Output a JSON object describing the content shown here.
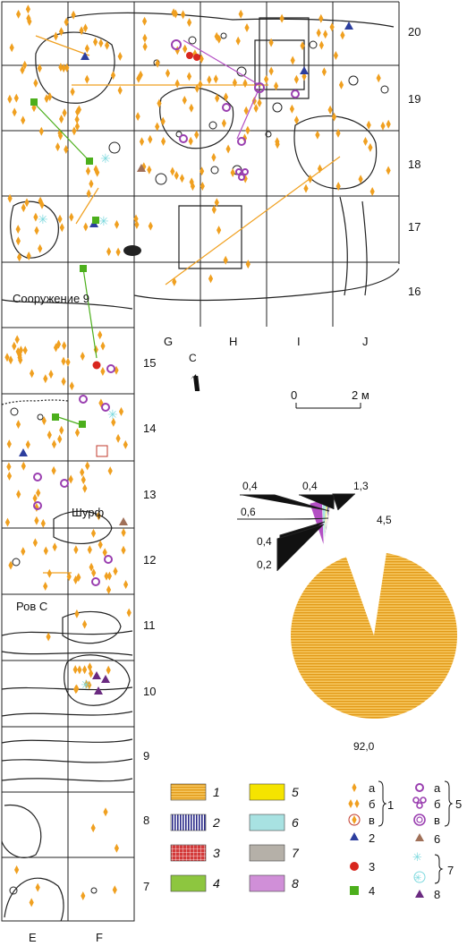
{
  "plan": {
    "row_numbers": [
      "20",
      "19",
      "18",
      "17",
      "16",
      "15",
      "14",
      "13",
      "12",
      "11",
      "10",
      "9",
      "8",
      "7"
    ],
    "col_letters_top": [
      "G",
      "H",
      "I",
      "J"
    ],
    "col_letters_bottom": [
      "E",
      "F"
    ],
    "labels": {
      "structure": "Сооружение 9",
      "pit": "Шурф",
      "ditch": "Ров С"
    },
    "north_label": "С",
    "scale": {
      "zero": "0",
      "end": "2 м"
    }
  },
  "chart_data": {
    "type": "pie",
    "unit": "%",
    "slices": [
      {
        "category": "1",
        "value": 92.0,
        "label": "92,0",
        "color": "#f0b232"
      },
      {
        "category": "8",
        "value": 4.5,
        "label": "4,5",
        "color": "#b44fc4"
      },
      {
        "category": "6",
        "value": 1.3,
        "label": "1,3",
        "color": "#a8e2e2"
      },
      {
        "category": "4",
        "value": 0.4,
        "label": "0,4",
        "color": "#8dc63f"
      },
      {
        "category": "5",
        "value": 0.4,
        "label": "0,4",
        "color": "#f5e400"
      },
      {
        "category": "2",
        "value": 0.6,
        "label": "0,6",
        "color": "#3b3b9e"
      },
      {
        "category": "7",
        "value": 0.4,
        "label": "0,4",
        "color": "#b5b0a8"
      },
      {
        "category": "3",
        "value": 0.2,
        "label": "0,2",
        "color": "#d33a3a"
      }
    ]
  },
  "legend": {
    "swatches": [
      {
        "num": "1",
        "color": "#f0b232",
        "pattern": "hstripe"
      },
      {
        "num": "2",
        "color": "#3b3b9e",
        "pattern": "vstripe"
      },
      {
        "num": "3",
        "color": "#d33a3a",
        "pattern": "grid"
      },
      {
        "num": "4",
        "color": "#8dc63f",
        "pattern": "solid"
      },
      {
        "num": "5",
        "color": "#f5e400",
        "pattern": "solid"
      },
      {
        "num": "6",
        "color": "#a8e2e2",
        "pattern": "solid"
      },
      {
        "num": "7",
        "color": "#b5b0a8",
        "pattern": "solid"
      },
      {
        "num": "8",
        "color": "#d08fd8",
        "pattern": "solid"
      }
    ],
    "symbols_a": {
      "sub_a": "а",
      "sub_b": "б",
      "sub_v": "в",
      "group1": "1",
      "item2": "2",
      "item3": "3",
      "item4": "4"
    },
    "symbols_b": {
      "sub_a": "а",
      "sub_b": "б",
      "sub_v": "в",
      "group5": "5",
      "item6": "6",
      "group7": "7",
      "item8": "8"
    }
  }
}
